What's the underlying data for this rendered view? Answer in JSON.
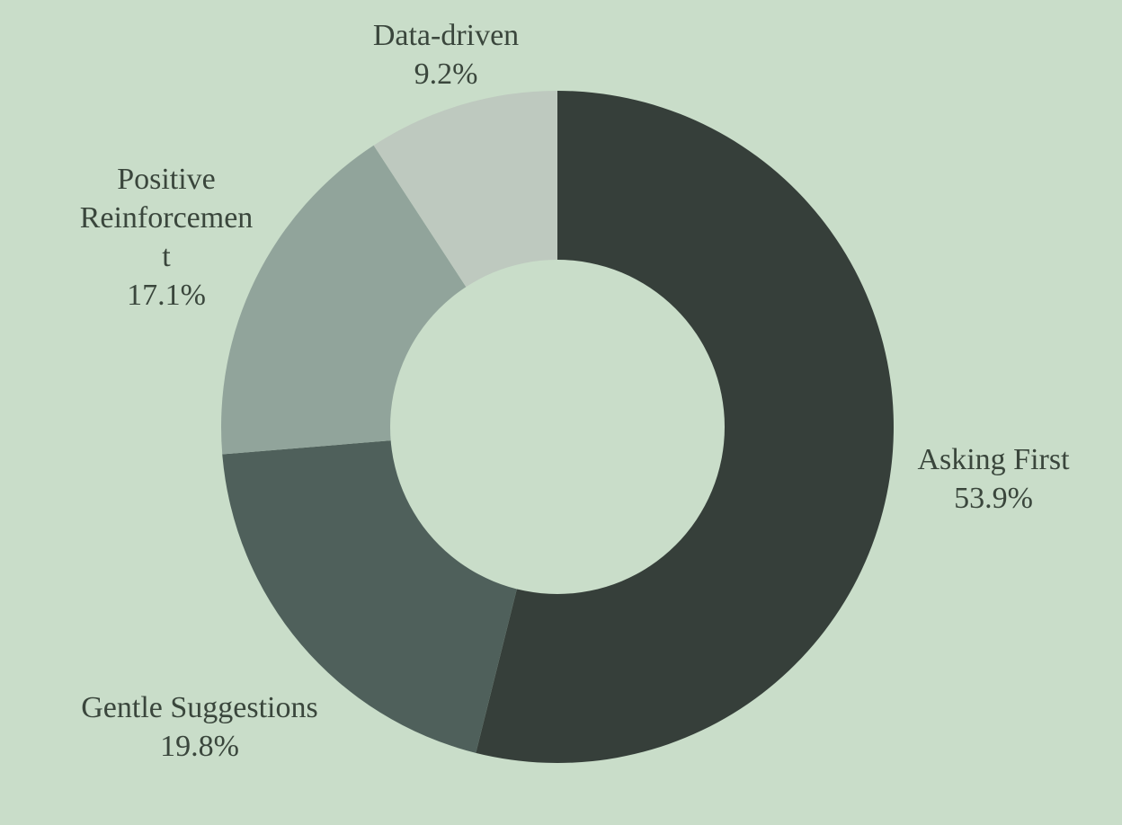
{
  "chart_data": {
    "type": "pie",
    "donut": true,
    "title": "",
    "start_angle_deg": 0,
    "direction": "clockwise",
    "slices": [
      {
        "label": "Asking First",
        "value": 53.9,
        "display": "53.9%",
        "color": "#363f3a"
      },
      {
        "label": "Gentle Suggestions",
        "value": 19.8,
        "display": "19.8%",
        "color": "#4f605b"
      },
      {
        "label": "Positive Reinforcement",
        "label_lines": [
          "Positive",
          "Reinforcemen",
          "t"
        ],
        "value": 17.1,
        "display": "17.1%",
        "color": "#91a49b"
      },
      {
        "label": "Data-driven",
        "value": 9.2,
        "display": "9.2%",
        "color": "#bec9bf"
      }
    ],
    "background_color": "#c9ddc9",
    "hole_color": "#c9ddc9",
    "label_color": "#3a463c"
  }
}
